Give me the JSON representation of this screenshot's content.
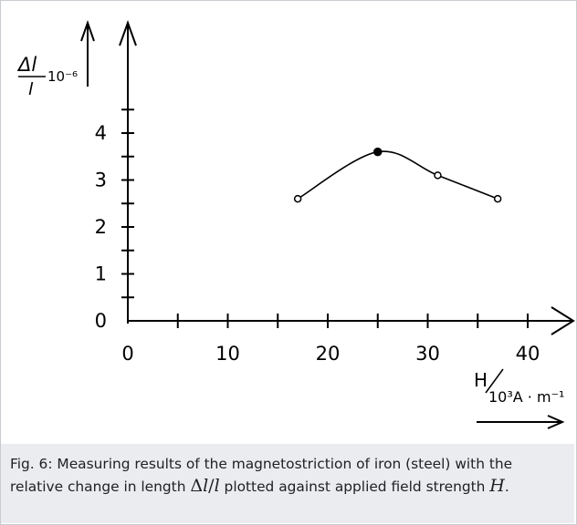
{
  "chart_data": {
    "type": "line",
    "x_tick_labels": [
      "0",
      "10",
      "20",
      "30",
      "40"
    ],
    "y_tick_labels": [
      "0",
      "1",
      "2",
      "3",
      "4"
    ],
    "xlim": [
      0,
      45
    ],
    "ylim": [
      0,
      4.5
    ],
    "y_axis_label": {
      "delta_l": "Δl",
      "l": "l",
      "exponent": "10⁻⁶"
    },
    "x_axis_label": {
      "H": "H",
      "unit": "10³A · m⁻¹"
    },
    "series": [
      {
        "points": [
          {
            "x": 17,
            "y": 2.6,
            "marker": "open"
          },
          {
            "x": 25,
            "y": 3.6,
            "marker": "filled"
          },
          {
            "x": 31,
            "y": 3.1,
            "marker": "open"
          },
          {
            "x": 37,
            "y": 2.6,
            "marker": "open"
          }
        ]
      }
    ],
    "grid": false
  },
  "caption": {
    "part1": "Fig. 6: Measuring results of the magnetostriction of iron (steel) with the relative change in length ",
    "math_dl": "Δ",
    "math_l1": "l",
    "math_slash": "/",
    "math_l2": "l",
    "part2": " plotted against applied field strength ",
    "math_H": "H",
    "part3": "."
  }
}
